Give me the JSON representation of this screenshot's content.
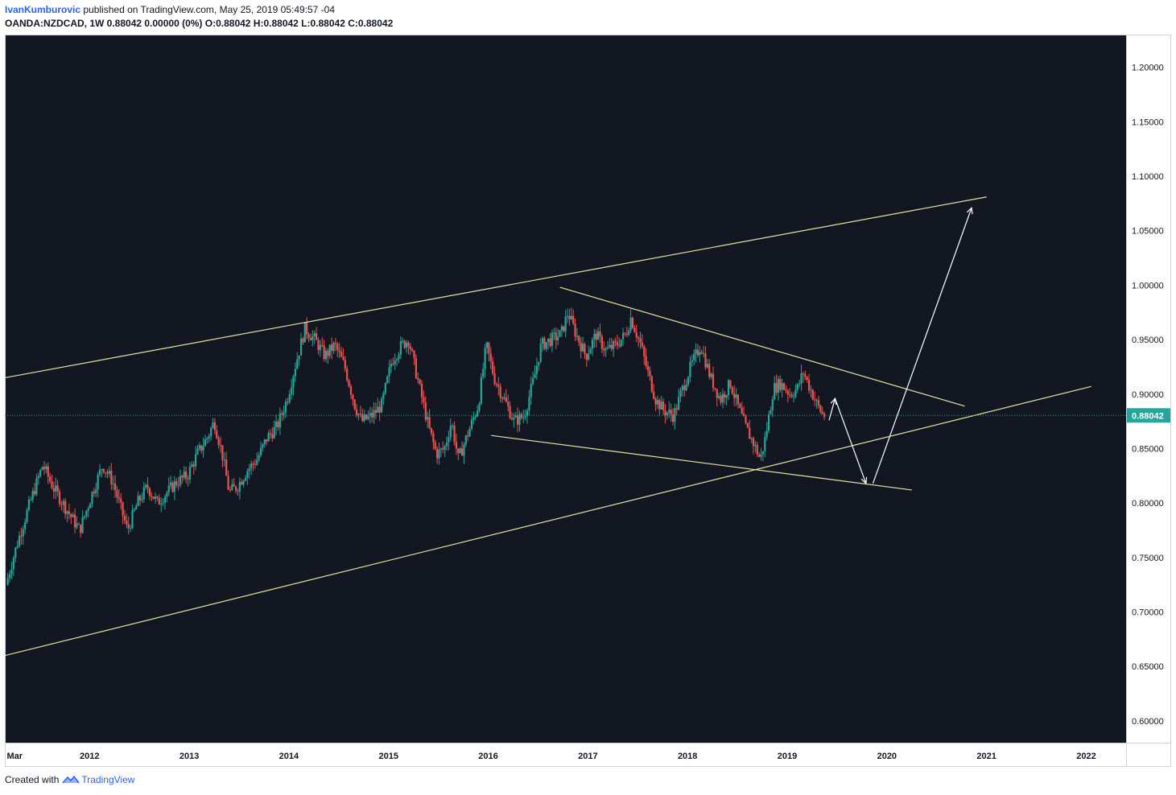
{
  "header": {
    "author": "IvanKumburovic",
    "published_text": " published on TradingView.com, May 25, 2019 05:49:57 -04",
    "symbol": "OANDA:NZDCAD, 1W",
    "quote": " 0.88042 0.00000 (0%) O:0.88042 H:0.88042 L:0.88042 C:0.88042"
  },
  "footer": {
    "created_with": "Created with",
    "brand": "TradingView",
    "logo_icon": "tradingview-logo-icon"
  },
  "colors": {
    "background": "#131722",
    "up": "#26a69a",
    "down": "#ef5350",
    "trendline": "#e6e6a0",
    "arrow": "#ffffff",
    "price_line": "#26a69a",
    "axis_text": "#131722"
  },
  "chart_data": {
    "type": "candlestick",
    "interval": "1W",
    "ylim": [
      0.58,
      1.23
    ],
    "xlim": [
      2011.15,
      2022.4
    ],
    "y_ticks": [
      "1.20000",
      "1.15000",
      "1.10000",
      "1.05000",
      "1.00000",
      "0.95000",
      "0.90000",
      "0.85000",
      "0.80000",
      "0.75000",
      "0.70000",
      "0.65000",
      "0.60000"
    ],
    "x_ticks": [
      {
        "label": "Mar",
        "x": 2011.17
      },
      {
        "label": "2012",
        "x": 2012.0
      },
      {
        "label": "2013",
        "x": 2013.0
      },
      {
        "label": "2014",
        "x": 2014.0
      },
      {
        "label": "2015",
        "x": 2015.0
      },
      {
        "label": "2016",
        "x": 2016.0
      },
      {
        "label": "2017",
        "x": 2017.0
      },
      {
        "label": "2018",
        "x": 2018.0
      },
      {
        "label": "2019",
        "x": 2019.0
      },
      {
        "label": "2020",
        "x": 2020.0
      },
      {
        "label": "2021",
        "x": 2021.0
      },
      {
        "label": "2022",
        "x": 2022.0
      }
    ],
    "last_price": 0.88042,
    "last_price_label": "0.88042",
    "price_path": [
      [
        2011.18,
        0.725
      ],
      [
        2011.3,
        0.765
      ],
      [
        2011.42,
        0.8
      ],
      [
        2011.55,
        0.835
      ],
      [
        2011.65,
        0.815
      ],
      [
        2011.75,
        0.8
      ],
      [
        2011.85,
        0.785
      ],
      [
        2011.92,
        0.775
      ],
      [
        2012.05,
        0.81
      ],
      [
        2012.15,
        0.835
      ],
      [
        2012.25,
        0.82
      ],
      [
        2012.35,
        0.79
      ],
      [
        2012.4,
        0.775
      ],
      [
        2012.5,
        0.8
      ],
      [
        2012.6,
        0.815
      ],
      [
        2012.7,
        0.8
      ],
      [
        2012.8,
        0.81
      ],
      [
        2012.9,
        0.82
      ],
      [
        2013.0,
        0.825
      ],
      [
        2013.1,
        0.845
      ],
      [
        2013.2,
        0.86
      ],
      [
        2013.27,
        0.875
      ],
      [
        2013.35,
        0.845
      ],
      [
        2013.42,
        0.81
      ],
      [
        2013.5,
        0.815
      ],
      [
        2013.6,
        0.83
      ],
      [
        2013.7,
        0.84
      ],
      [
        2013.8,
        0.86
      ],
      [
        2013.9,
        0.87
      ],
      [
        2014.0,
        0.895
      ],
      [
        2014.08,
        0.925
      ],
      [
        2014.18,
        0.96
      ],
      [
        2014.28,
        0.95
      ],
      [
        2014.38,
        0.935
      ],
      [
        2014.48,
        0.945
      ],
      [
        2014.58,
        0.925
      ],
      [
        2014.68,
        0.89
      ],
      [
        2014.75,
        0.875
      ],
      [
        2014.85,
        0.88
      ],
      [
        2014.95,
        0.89
      ],
      [
        2015.05,
        0.93
      ],
      [
        2015.15,
        0.945
      ],
      [
        2015.22,
        0.95
      ],
      [
        2015.32,
        0.91
      ],
      [
        2015.42,
        0.87
      ],
      [
        2015.5,
        0.845
      ],
      [
        2015.58,
        0.85
      ],
      [
        2015.65,
        0.875
      ],
      [
        2015.72,
        0.84
      ],
      [
        2015.8,
        0.86
      ],
      [
        2015.92,
        0.89
      ],
      [
        2016.0,
        0.945
      ],
      [
        2016.08,
        0.915
      ],
      [
        2016.18,
        0.895
      ],
      [
        2016.28,
        0.875
      ],
      [
        2016.38,
        0.88
      ],
      [
        2016.48,
        0.915
      ],
      [
        2016.55,
        0.945
      ],
      [
        2016.65,
        0.95
      ],
      [
        2016.75,
        0.955
      ],
      [
        2016.82,
        0.975
      ],
      [
        2016.9,
        0.955
      ],
      [
        2017.0,
        0.935
      ],
      [
        2017.1,
        0.955
      ],
      [
        2017.2,
        0.94
      ],
      [
        2017.3,
        0.945
      ],
      [
        2017.4,
        0.955
      ],
      [
        2017.45,
        0.97
      ],
      [
        2017.55,
        0.945
      ],
      [
        2017.62,
        0.92
      ],
      [
        2017.7,
        0.895
      ],
      [
        2017.78,
        0.885
      ],
      [
        2017.88,
        0.88
      ],
      [
        2017.95,
        0.9
      ],
      [
        2018.05,
        0.925
      ],
      [
        2018.15,
        0.945
      ],
      [
        2018.25,
        0.915
      ],
      [
        2018.35,
        0.895
      ],
      [
        2018.45,
        0.91
      ],
      [
        2018.52,
        0.89
      ],
      [
        2018.6,
        0.87
      ],
      [
        2018.68,
        0.855
      ],
      [
        2018.75,
        0.84
      ],
      [
        2018.8,
        0.86
      ],
      [
        2018.88,
        0.905
      ],
      [
        2018.95,
        0.91
      ],
      [
        2019.05,
        0.9
      ],
      [
        2019.12,
        0.905
      ],
      [
        2019.18,
        0.92
      ],
      [
        2019.25,
        0.905
      ],
      [
        2019.32,
        0.89
      ],
      [
        2019.38,
        0.88042
      ]
    ],
    "drawings": [
      {
        "name": "channel-upper-line",
        "type": "line",
        "points": [
          [
            2011.15,
            0.915
          ],
          [
            2021.0,
            1.081
          ]
        ]
      },
      {
        "name": "channel-lower-line",
        "type": "line",
        "points": [
          [
            2011.15,
            0.66
          ],
          [
            2022.05,
            0.907
          ]
        ]
      },
      {
        "name": "triangle-upper-line",
        "type": "line",
        "points": [
          [
            2016.72,
            0.998
          ],
          [
            2020.78,
            0.889
          ]
        ]
      },
      {
        "name": "triangle-lower-line",
        "type": "line",
        "points": [
          [
            2016.03,
            0.862
          ],
          [
            2020.25,
            0.812
          ]
        ]
      }
    ],
    "arrows": [
      {
        "name": "projection-arrow-up-short",
        "points": [
          [
            2019.42,
            0.876
          ],
          [
            2019.48,
            0.896
          ]
        ]
      },
      {
        "name": "projection-arrow-down",
        "points": [
          [
            2019.48,
            0.896
          ],
          [
            2019.79,
            0.818
          ]
        ]
      },
      {
        "name": "projection-arrow-up-long",
        "points": [
          [
            2019.86,
            0.818
          ],
          [
            2020.85,
            1.071
          ]
        ]
      }
    ]
  }
}
